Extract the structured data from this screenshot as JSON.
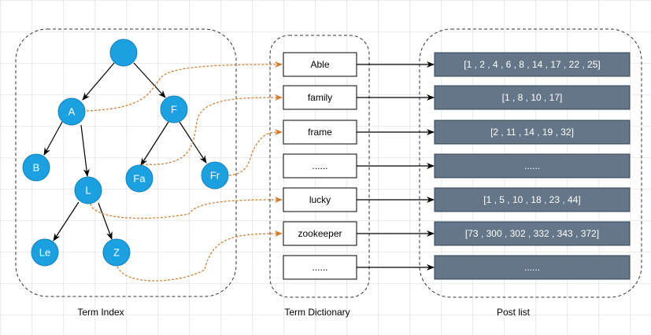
{
  "tree": {
    "root": "",
    "nodes": [
      "A",
      "F",
      "B",
      "L",
      "Fa",
      "Fr",
      "Le",
      "Z"
    ],
    "label": "Term Index"
  },
  "dictionary": {
    "terms": [
      "Able",
      "family",
      "frame",
      "......",
      "lucky",
      "zookeeper",
      "......"
    ],
    "label": "Term Dictionary"
  },
  "postings": {
    "lists": [
      "[1 , 2 , 4 , 6 , 8 , 14 , 17 , 22 , 25]",
      "[1 , 8 , 10 , 17]",
      "[2 , 11 , 14 , 19 , 32]",
      "......",
      "[1 , 5 , 10 , 18 , 23 , 44]",
      "[73 , 300 , 302 , 332 , 343 , 372]",
      "......"
    ],
    "label": "Post list"
  },
  "colors": {
    "node": "#1ba1e2",
    "post": "#647687",
    "link": "#d07a2a"
  }
}
